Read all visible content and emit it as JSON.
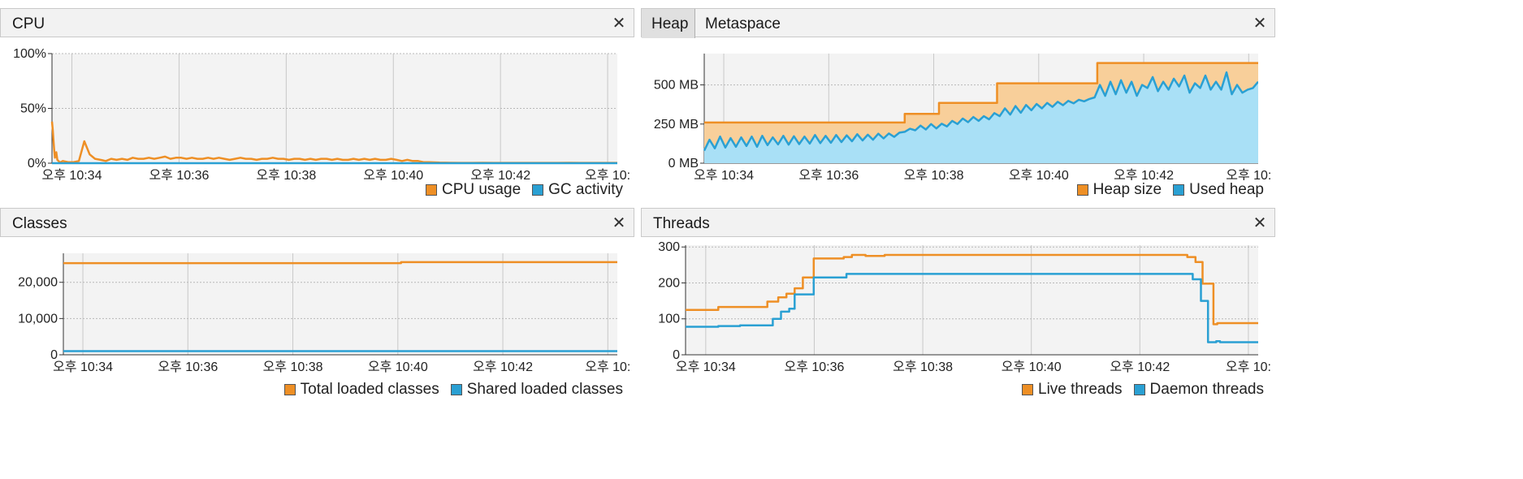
{
  "colors": {
    "orange": "#ee8f25",
    "blue": "#2aa0d3",
    "orange_fill": "#f8cf9a",
    "blue_fill": "#a9e0f6"
  },
  "x_ticks": [
    "오후 10:34",
    "오후 10:36",
    "오후 10:38",
    "오후 10:40",
    "오후 10:42",
    "오후 10:"
  ],
  "panels": {
    "cpu": {
      "title": "CPU",
      "legend": [
        "CPU usage",
        "GC activity"
      ]
    },
    "memory": {
      "tabs": [
        "Heap",
        "Metaspace"
      ],
      "legend": [
        "Heap size",
        "Used heap"
      ]
    },
    "classes": {
      "title": "Classes",
      "legend": [
        "Total loaded classes",
        "Shared loaded classes"
      ]
    },
    "threads": {
      "title": "Threads",
      "legend": [
        "Live threads",
        "Daemon threads"
      ]
    }
  },
  "chart_data": [
    {
      "type": "line",
      "title": "CPU",
      "x": [
        0,
        0.15,
        0.25,
        0.4,
        0.55,
        0.8,
        1.0,
        1.2,
        1.4,
        1.6,
        2,
        3,
        4,
        5,
        6,
        7,
        8,
        9,
        10,
        11,
        12,
        13,
        14,
        15,
        16,
        17,
        18,
        19,
        20,
        21,
        22,
        23,
        24,
        25,
        26,
        27,
        28,
        29,
        30,
        31,
        32,
        33,
        34,
        35,
        36,
        37,
        38,
        39,
        40,
        41,
        42,
        43,
        44,
        45,
        46,
        47,
        48,
        49,
        50,
        51,
        52,
        53,
        54,
        55,
        56,
        57,
        58,
        59,
        60,
        61,
        62,
        63,
        64,
        65,
        66,
        67,
        68,
        69,
        70,
        72,
        74,
        76,
        78,
        80,
        82,
        84,
        86,
        88,
        90,
        92,
        94,
        96,
        98,
        100,
        102,
        104,
        105
      ],
      "x_ticks": [
        "오후 10:34",
        "오후 10:36",
        "오후 10:38",
        "오후 10:40",
        "오후 10:42",
        "오후 10:"
      ],
      "x_tick_positions": [
        3.7,
        23.6,
        43.5,
        63.4,
        83.3,
        103.2
      ],
      "y_ticks": [
        "0%",
        "50%",
        "100%"
      ],
      "ylim": [
        0,
        100
      ],
      "series": [
        {
          "name": "CPU usage",
          "values": [
            38,
            30,
            22,
            12,
            5,
            10,
            3,
            2,
            1,
            1,
            2,
            1,
            1,
            2,
            20,
            8,
            4,
            3,
            2,
            4,
            3,
            4,
            3,
            5,
            4,
            4,
            5,
            4,
            5,
            6,
            4,
            5,
            5,
            4,
            5,
            4,
            4,
            5,
            4,
            5,
            4,
            3,
            4,
            5,
            4,
            4,
            3,
            4,
            4,
            5,
            4,
            4,
            3,
            4,
            4,
            3,
            4,
            3,
            4,
            4,
            3,
            4,
            3,
            3,
            4,
            3,
            4,
            3,
            4,
            3,
            3,
            4,
            3,
            2,
            3,
            2,
            2,
            1,
            1,
            0.5,
            0.4,
            0.3,
            0.3,
            0.4,
            0.3,
            0.3,
            0.3,
            0.3,
            0.3,
            0.3,
            0.3,
            0.4,
            0.3,
            0.3,
            0.3,
            0.3,
            0.3
          ]
        },
        {
          "name": "GC activity",
          "values": [
            0,
            0,
            0,
            0,
            0,
            0,
            0,
            0,
            0,
            0,
            0,
            0,
            0,
            0,
            0,
            0,
            0,
            0,
            0,
            0,
            0,
            0,
            0,
            0,
            0,
            0,
            0,
            0,
            0,
            0,
            0,
            0,
            0,
            0,
            0,
            0,
            0,
            0,
            0,
            0,
            0,
            0,
            0,
            0,
            0,
            0,
            0,
            0,
            0,
            0,
            0,
            0,
            0,
            0,
            0,
            0,
            0,
            0,
            0,
            0,
            0,
            0,
            0,
            0,
            0,
            0,
            0,
            0,
            0,
            0,
            0,
            0,
            0,
            0,
            0,
            0,
            0,
            0,
            0,
            0,
            0,
            0,
            0,
            0,
            0,
            0,
            0,
            0,
            0,
            0,
            0,
            0,
            0,
            0,
            0,
            0,
            0
          ]
        }
      ]
    },
    {
      "type": "area",
      "title": "Heap",
      "x_ticks": [
        "오후 10:34",
        "오후 10:36",
        "오후 10:38",
        "오후 10:40",
        "오후 10:42",
        "오후 10:"
      ],
      "x_tick_positions": [
        3.7,
        23.6,
        43.5,
        63.4,
        83.3,
        103.2
      ],
      "y_ticks": [
        "0 MB",
        "250 MB",
        "500 MB"
      ],
      "ylim": [
        0,
        700
      ],
      "series": [
        {
          "name": "Heap size",
          "x": [
            0,
            38,
            38,
            44.5,
            44.5,
            55.5,
            55.5,
            74.5,
            74.5,
            105
          ],
          "values": [
            260,
            260,
            315,
            315,
            385,
            385,
            510,
            510,
            640,
            640
          ]
        },
        {
          "name": "Used heap",
          "x": [
            0,
            1,
            2,
            3,
            4,
            5,
            6,
            7,
            8,
            9,
            10,
            11,
            12,
            13,
            14,
            15,
            16,
            17,
            18,
            19,
            20,
            21,
            22,
            23,
            24,
            25,
            26,
            27,
            28,
            29,
            30,
            31,
            32,
            33,
            34,
            35,
            36,
            37,
            38,
            39,
            40,
            41,
            42,
            43,
            44,
            45,
            46,
            47,
            48,
            49,
            50,
            51,
            52,
            53,
            54,
            55,
            56,
            57,
            58,
            59,
            60,
            61,
            62,
            63,
            64,
            65,
            66,
            67,
            68,
            69,
            70,
            71,
            72,
            73,
            74,
            75,
            76,
            77,
            78,
            79,
            80,
            81,
            82,
            83,
            84,
            85,
            86,
            87,
            88,
            89,
            90,
            91,
            92,
            93,
            94,
            95,
            96,
            97,
            98,
            99,
            100,
            101,
            102,
            103,
            104,
            105
          ],
          "values": [
            80,
            150,
            95,
            170,
            100,
            160,
            105,
            165,
            110,
            170,
            105,
            175,
            115,
            165,
            120,
            175,
            118,
            172,
            122,
            170,
            125,
            180,
            128,
            175,
            130,
            180,
            135,
            178,
            140,
            185,
            145,
            182,
            150,
            188,
            158,
            190,
            168,
            195,
            200,
            220,
            210,
            240,
            215,
            250,
            222,
            252,
            235,
            270,
            250,
            285,
            262,
            295,
            270,
            300,
            280,
            320,
            300,
            350,
            310,
            365,
            322,
            372,
            338,
            378,
            350,
            385,
            360,
            392,
            370,
            398,
            382,
            405,
            395,
            410,
            420,
            500,
            430,
            520,
            440,
            530,
            450,
            520,
            430,
            500,
            480,
            550,
            460,
            520,
            470,
            540,
            490,
            560,
            450,
            510,
            480,
            560,
            470,
            520,
            470,
            580,
            440,
            500,
            450,
            470,
            480,
            520
          ]
        }
      ]
    },
    {
      "type": "line",
      "title": "Classes",
      "x": [
        0,
        64,
        64,
        105
      ],
      "x_ticks": [
        "오후 10:34",
        "오후 10:36",
        "오후 10:38",
        "오후 10:40",
        "오후 10:42",
        "오후 10:"
      ],
      "x_tick_positions": [
        3.7,
        23.6,
        43.5,
        63.4,
        83.3,
        103.2
      ],
      "y_ticks": [
        "0",
        "10,000",
        "20,000"
      ],
      "ylim": [
        0,
        28000
      ],
      "series": [
        {
          "name": "Total loaded classes",
          "values": [
            25300,
            25300,
            25550,
            25550
          ]
        },
        {
          "name": "Shared loaded classes",
          "values": [
            1000,
            1000,
            1000,
            1000
          ]
        }
      ]
    },
    {
      "type": "line",
      "title": "Threads",
      "x_ticks": [
        "오후 10:34",
        "오후 10:36",
        "오후 10:38",
        "오후 10:40",
        "오후 10:42",
        "오후 10:"
      ],
      "x_tick_positions": [
        3.7,
        23.6,
        43.5,
        63.4,
        83.3,
        103.2
      ],
      "y_ticks": [
        "0",
        "100",
        "200",
        "300"
      ],
      "ylim": [
        0,
        305
      ],
      "series": [
        {
          "name": "Live threads",
          "x": [
            0,
            6,
            6,
            15,
            15,
            17,
            17,
            18.5,
            18.5,
            20,
            20,
            21.5,
            21.5,
            23.5,
            23.5,
            29,
            29,
            30.5,
            30.5,
            33,
            33,
            36.5,
            36.5,
            92,
            92,
            93.5,
            93.5,
            94.8,
            94.8,
            96.8,
            96.8,
            97.5,
            97.5,
            105
          ],
          "values": [
            125,
            125,
            133,
            133,
            148,
            148,
            160,
            160,
            170,
            170,
            185,
            185,
            215,
            215,
            268,
            268,
            272,
            272,
            278,
            278,
            275,
            275,
            278,
            278,
            272,
            272,
            258,
            258,
            198,
            198,
            85,
            85,
            88,
            88
          ]
        },
        {
          "name": "Daemon threads",
          "x": [
            0,
            6,
            6,
            10,
            10,
            16,
            16,
            17.5,
            17.5,
            19,
            19,
            20,
            20,
            23.5,
            23.5,
            29.5,
            29.5,
            30.5,
            30.5,
            93,
            93,
            94.5,
            94.5,
            95.8,
            95.8,
            97.3,
            97.3,
            98,
            98,
            105
          ],
          "values": [
            78,
            78,
            80,
            80,
            82,
            82,
            100,
            100,
            120,
            120,
            128,
            128,
            168,
            168,
            215,
            215,
            225,
            225,
            225,
            225,
            210,
            210,
            150,
            150,
            35,
            35,
            38,
            38,
            35,
            35
          ]
        }
      ]
    }
  ]
}
